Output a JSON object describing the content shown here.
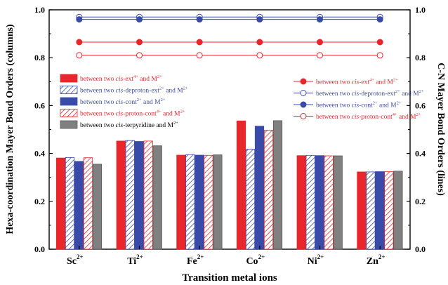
{
  "chart_data": {
    "type": "bar",
    "xlabel": "Transition metal ions",
    "ylabel_left": "Hexa-coordination Mayer Bond Orders (columns)",
    "ylabel_right": "C-N Mayer Bond Orders (lines)",
    "ylim": [
      0,
      1.0
    ],
    "yticks": [
      "0.0",
      "0.2",
      "0.4",
      "0.6",
      "0.8",
      "1.0"
    ],
    "categories": [
      {
        "base": "Sc",
        "charge": "2+"
      },
      {
        "base": "Ti",
        "charge": "2+"
      },
      {
        "base": "Fe",
        "charge": "2+"
      },
      {
        "base": "Co",
        "charge": "2+"
      },
      {
        "base": "Ni",
        "charge": "2+"
      },
      {
        "base": "Zn",
        "charge": "2+"
      }
    ],
    "bar_series": [
      {
        "name_pre": "between two ",
        "name_it": "cis",
        "name_mid": "-ext",
        "name_sup": "4+",
        "name_post": " and M",
        "name_sup2": "2+",
        "color": "#e8262b",
        "pattern": "solid",
        "values": [
          0.381,
          0.452,
          0.393,
          0.536,
          0.391,
          0.323
        ]
      },
      {
        "name_pre": "between two ",
        "name_it": "cis",
        "name_mid": "-deproton-ext",
        "name_sup": "2+",
        "name_post": " and M",
        "name_sup2": "2+",
        "color": "#3a4aa8",
        "pattern": "hatch",
        "values": [
          0.383,
          0.454,
          0.395,
          0.418,
          0.392,
          0.323
        ]
      },
      {
        "name_pre": "between two ",
        "name_it": "cis",
        "name_mid": "-cont",
        "name_sup": "2+",
        "name_post": " and M",
        "name_sup2": "2+",
        "color": "#3a4aa8",
        "pattern": "solid",
        "values": [
          0.367,
          0.45,
          0.393,
          0.514,
          0.391,
          0.324
        ]
      },
      {
        "name_pre": "between two ",
        "name_it": "cis",
        "name_mid": "-proton-cont",
        "name_sup": "4+",
        "name_post": " and M",
        "name_sup2": "2+",
        "color": "#e8262b",
        "pattern": "hatch",
        "values": [
          0.382,
          0.452,
          0.392,
          0.497,
          0.39,
          0.324
        ]
      },
      {
        "name_pre": "between two ",
        "name_it": "cis",
        "name_mid": "-terpyridine and M",
        "name_sup": "2+",
        "name_post": "",
        "name_sup2": "",
        "color": "#808080",
        "pattern": "solid",
        "values": [
          0.355,
          0.432,
          0.394,
          0.537,
          0.39,
          0.326
        ]
      }
    ],
    "line_series": [
      {
        "name_pre": "between two ",
        "name_it": "cis",
        "name_mid": "-ext",
        "name_sup": "4+",
        "name_post": " and M",
        "name_sup2": "2+",
        "color": "#e8262b",
        "marker": "filled",
        "values": [
          0.865,
          0.865,
          0.865,
          0.865,
          0.865,
          0.865
        ]
      },
      {
        "name_pre": "between two ",
        "name_it": "cis",
        "name_mid": "-deproton-ext",
        "name_sup": "2+",
        "name_post": " and M",
        "name_sup2": "2+",
        "color": "#3a4aa8",
        "marker": "open",
        "values": [
          0.97,
          0.97,
          0.97,
          0.97,
          0.97,
          0.97
        ]
      },
      {
        "name_pre": "between two ",
        "name_it": "cis",
        "name_mid": "-cont",
        "name_sup": "2+",
        "name_post": " and M",
        "name_sup2": "2+",
        "color": "#3a4aa8",
        "marker": "filled",
        "values": [
          0.96,
          0.96,
          0.96,
          0.96,
          0.96,
          0.96
        ]
      },
      {
        "name_pre": "between two ",
        "name_it": "cis",
        "name_mid": "-proton-cont",
        "name_sup": "4+",
        "name_post": " and M",
        "name_sup2": "2+",
        "color": "#e8262b",
        "marker": "open",
        "values": [
          0.81,
          0.81,
          0.81,
          0.81,
          0.81,
          0.81
        ]
      }
    ],
    "legend_bars_position": "left",
    "legend_lines_position": "right",
    "grid": false
  }
}
